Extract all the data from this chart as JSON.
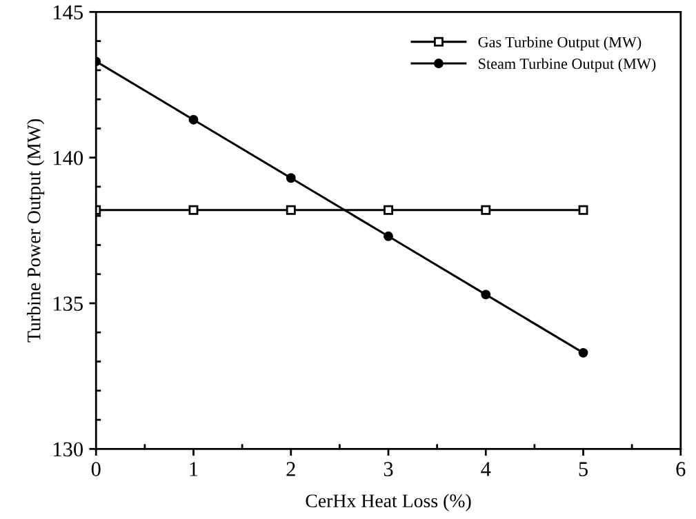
{
  "chart_data": {
    "type": "line",
    "xlabel": "CerHx Heat Loss (%)",
    "ylabel": "Turbine Power Output (MW)",
    "x": [
      0,
      1,
      2,
      3,
      4,
      5
    ],
    "series": [
      {
        "name": "Gas Turbine Output (MW)",
        "color": "#000000",
        "marker": "square",
        "values": [
          138.2,
          138.2,
          138.2,
          138.2,
          138.2,
          138.2
        ]
      },
      {
        "name": "Steam Turbine Output (MW)",
        "color": "#000000",
        "marker": "circle",
        "values": [
          143.3,
          141.3,
          139.3,
          137.3,
          135.3,
          133.3
        ]
      }
    ],
    "xlim": [
      0,
      6
    ],
    "ylim": [
      130,
      145
    ],
    "xticks": [
      0,
      {
        "value": 0.5,
        "label": null
      },
      1,
      {
        "value": 1.5,
        "label": null
      },
      2,
      {
        "value": 2.5,
        "label": null
      },
      3,
      {
        "value": 3.5,
        "label": null
      },
      4,
      {
        "value": 4.5,
        "label": null
      },
      5,
      {
        "value": 5.5,
        "label": null
      },
      6
    ],
    "yticks": [
      130,
      {
        "value": 131,
        "label": null
      },
      {
        "value": 132,
        "label": null
      },
      {
        "value": 133,
        "label": null
      },
      {
        "value": 134,
        "label": null
      },
      135,
      {
        "value": 136,
        "label": null
      },
      {
        "value": 137,
        "label": null
      },
      {
        "value": 138,
        "label": null
      },
      {
        "value": 139,
        "label": null
      },
      140,
      {
        "value": 141,
        "label": null
      },
      {
        "value": 142,
        "label": null
      },
      {
        "value": 143,
        "label": null
      },
      {
        "value": 144,
        "label": null
      },
      145
    ],
    "grid": false,
    "legend": "top right",
    "line_style": "solid"
  }
}
